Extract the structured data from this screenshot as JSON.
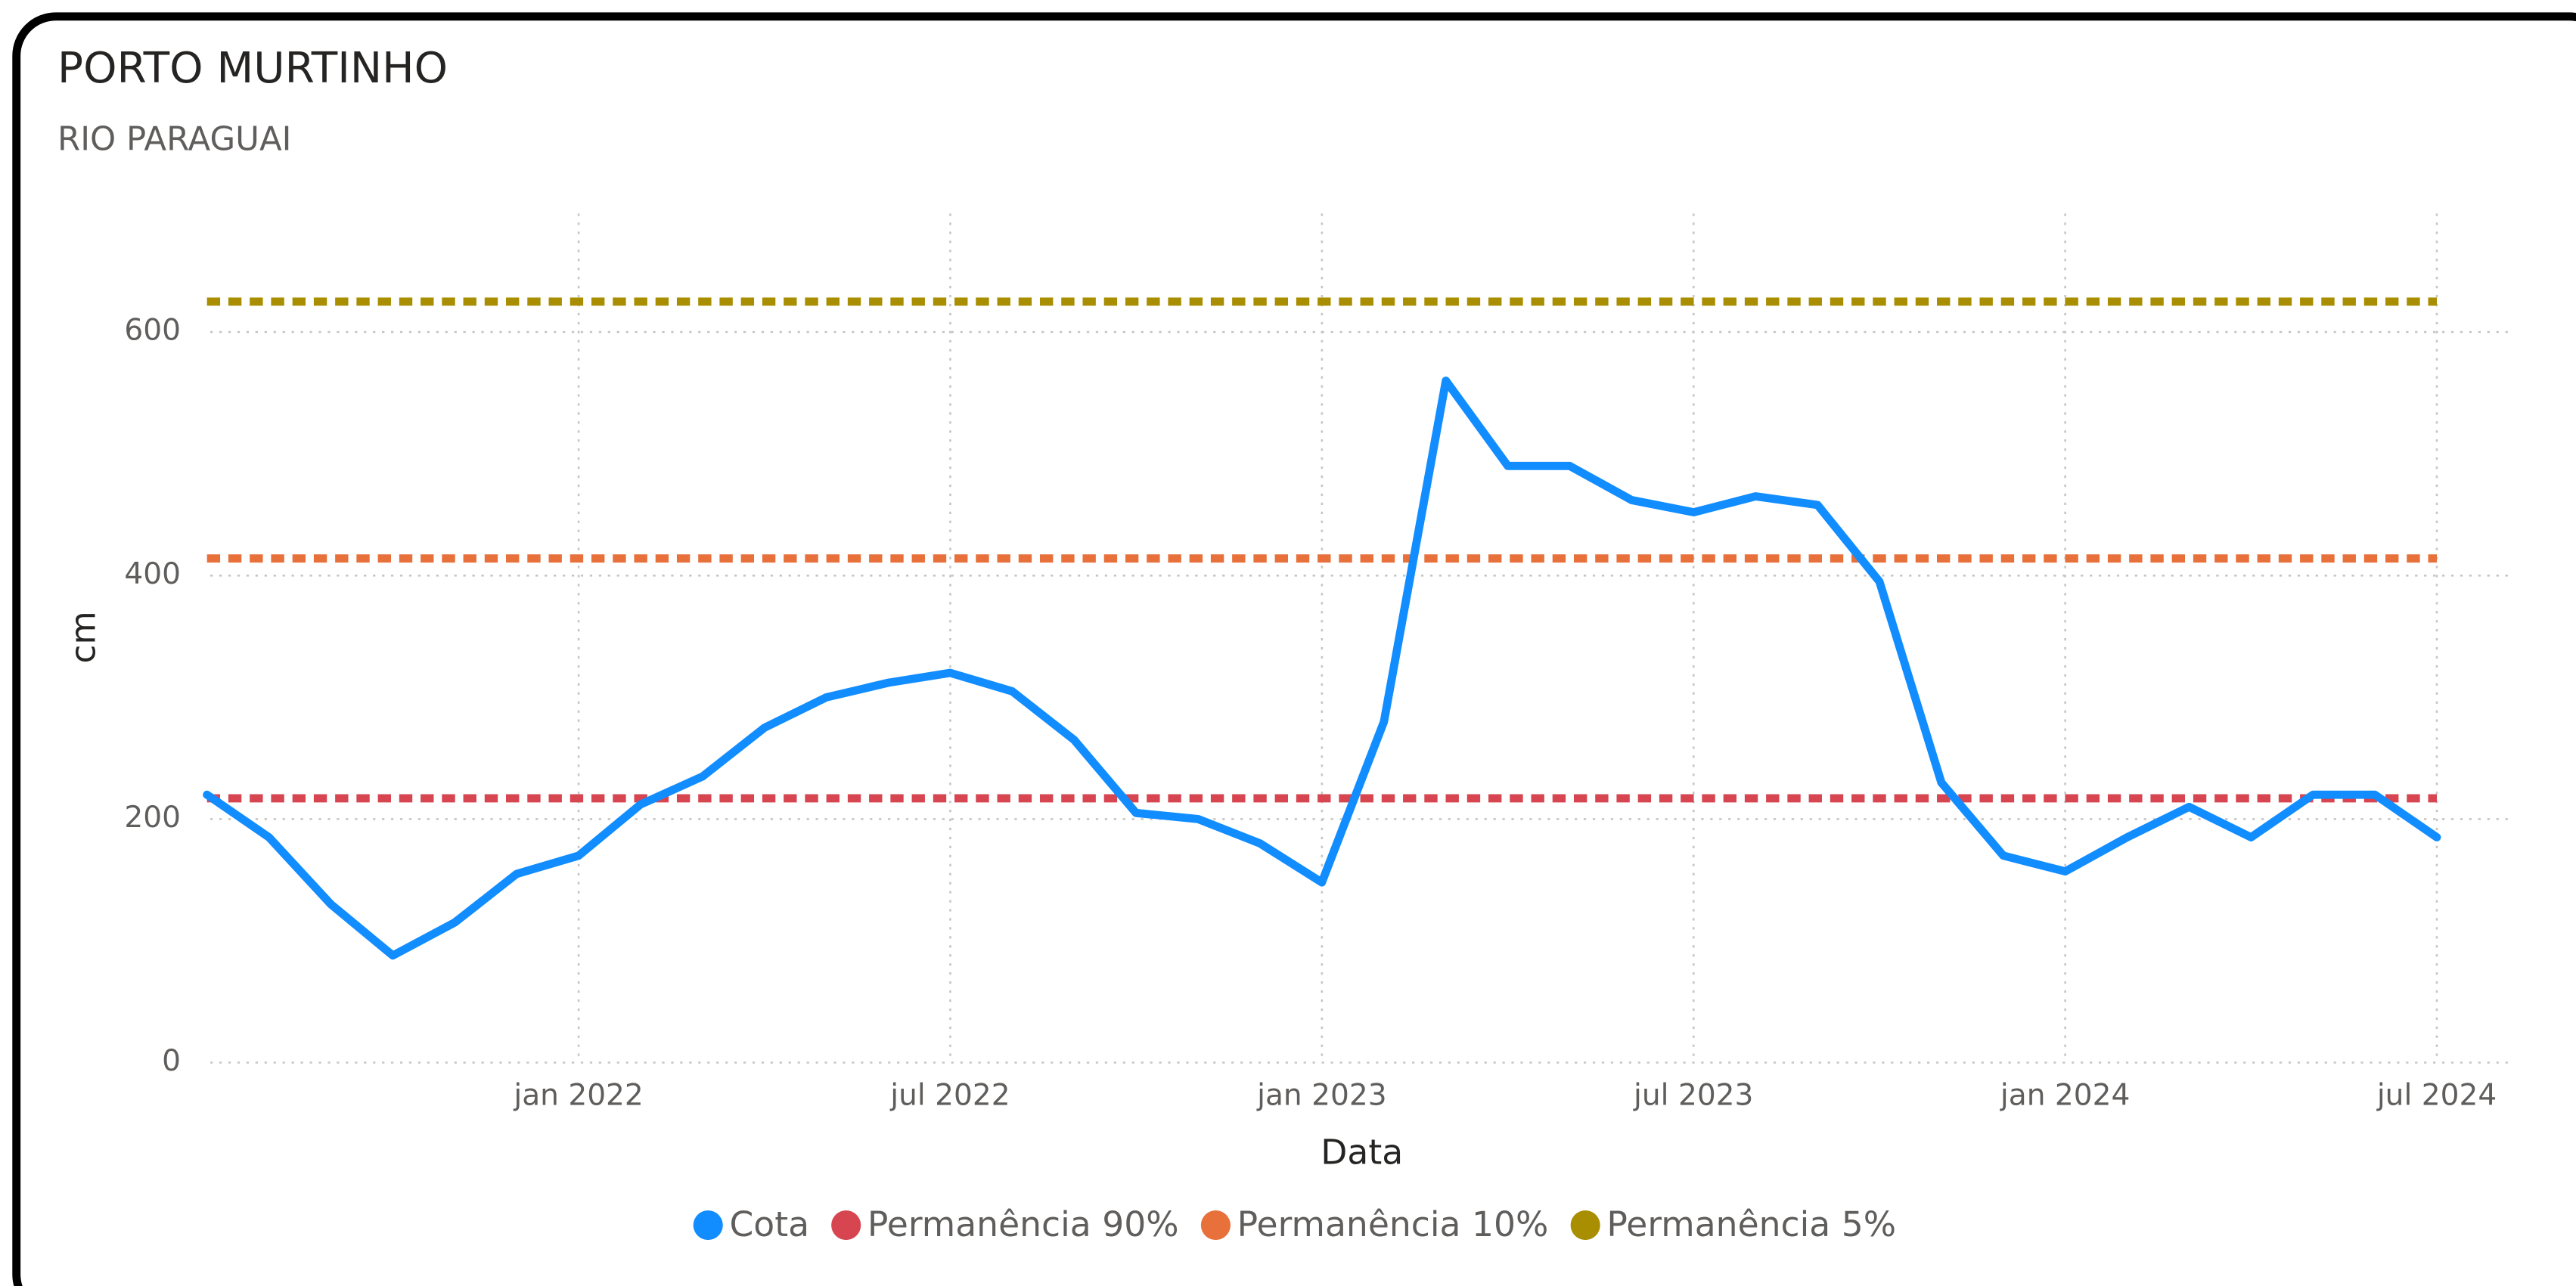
{
  "chart_data": {
    "type": "line",
    "title": "PORTO MURTINHO",
    "subtitle": "RIO PARAGUAI",
    "x_label": "Data",
    "y_label": "cm",
    "x": [
      "2021-07",
      "2021-08",
      "2021-09",
      "2021-10",
      "2021-11",
      "2021-12",
      "2022-01",
      "2022-02",
      "2022-03",
      "2022-04",
      "2022-05",
      "2022-06",
      "2022-07",
      "2022-08",
      "2022-09",
      "2022-10",
      "2022-11",
      "2022-12",
      "2023-01",
      "2023-02",
      "2023-03",
      "2023-04",
      "2023-05",
      "2023-06",
      "2023-07",
      "2023-08",
      "2023-09",
      "2023-10",
      "2023-11",
      "2023-12",
      "2024-01",
      "2024-02",
      "2024-03",
      "2024-04",
      "2024-05",
      "2024-06",
      "2024-07"
    ],
    "series": [
      {
        "name": "Cota",
        "color": "#118dff",
        "style": "solid",
        "values": [
          220,
          185,
          130,
          88,
          115,
          155,
          170,
          212,
          235,
          275,
          300,
          312,
          320,
          305,
          265,
          205,
          200,
          180,
          148,
          280,
          560,
          490,
          490,
          462,
          452,
          465,
          458,
          395,
          230,
          170,
          157,
          185,
          210,
          185,
          220,
          220,
          185
        ]
      },
      {
        "name": "Permanência 90%",
        "color": "#d64550",
        "style": "dashed",
        "values": [
          217,
          217,
          217,
          217,
          217,
          217,
          217,
          217,
          217,
          217,
          217,
          217,
          217,
          217,
          217,
          217,
          217,
          217,
          217,
          217,
          217,
          217,
          217,
          217,
          217,
          217,
          217,
          217,
          217,
          217,
          217,
          217,
          217,
          217,
          217,
          217,
          217
        ]
      },
      {
        "name": "Permanência 10%",
        "color": "#e8703a",
        "style": "dashed",
        "values": [
          414,
          414,
          414,
          414,
          414,
          414,
          414,
          414,
          414,
          414,
          414,
          414,
          414,
          414,
          414,
          414,
          414,
          414,
          414,
          414,
          414,
          414,
          414,
          414,
          414,
          414,
          414,
          414,
          414,
          414,
          414,
          414,
          414,
          414,
          414,
          414,
          414
        ]
      },
      {
        "name": "Permanência 5%",
        "color": "#a88e00",
        "style": "dashed",
        "values": [
          625,
          625,
          625,
          625,
          625,
          625,
          625,
          625,
          625,
          625,
          625,
          625,
          625,
          625,
          625,
          625,
          625,
          625,
          625,
          625,
          625,
          625,
          625,
          625,
          625,
          625,
          625,
          625,
          625,
          625,
          625,
          625,
          625,
          625,
          625,
          625,
          625
        ]
      }
    ],
    "xlim": [
      "2021-07",
      "2024-08"
    ],
    "xticks": [
      {
        "value": "2022-01",
        "label": "jan 2022"
      },
      {
        "value": "2022-07",
        "label": "jul 2022"
      },
      {
        "value": "2023-01",
        "label": "jan 2023"
      },
      {
        "value": "2023-07",
        "label": "jul 2023"
      },
      {
        "value": "2024-01",
        "label": "jan 2024"
      },
      {
        "value": "2024-07",
        "label": "jul 2024"
      }
    ],
    "ylim": [
      0,
      700
    ],
    "yticks": [
      0,
      200,
      400,
      600
    ],
    "grid": true,
    "legend": "bottom"
  }
}
